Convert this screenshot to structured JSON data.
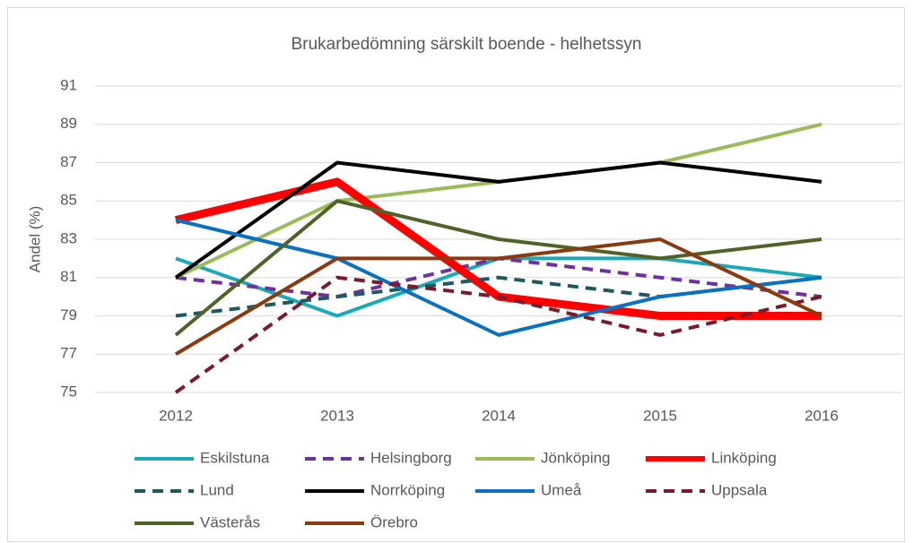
{
  "chart_data": {
    "type": "line",
    "title": "Brukarbedömning särskilt boende - helhetssyn",
    "y_label": "Andel (%)",
    "categories": [
      "2012",
      "2013",
      "2014",
      "2015",
      "2016"
    ],
    "ylim": [
      75,
      91
    ],
    "yticks": [
      75,
      77,
      79,
      81,
      83,
      85,
      87,
      89,
      91
    ],
    "grid": true,
    "legend": "bottom",
    "series": [
      {
        "name": "Eskilstuna",
        "color": "#1aa9b6",
        "dash": false,
        "width": 4,
        "values": [
          82,
          79,
          82,
          82,
          81
        ]
      },
      {
        "name": "Helsingborg",
        "color": "#7030a0",
        "dash": true,
        "width": 4,
        "values": [
          81,
          80,
          82,
          81,
          80
        ]
      },
      {
        "name": "Jönköping",
        "color": "#9bbb59",
        "dash": false,
        "width": 4,
        "values": [
          81,
          85,
          86,
          87,
          89
        ]
      },
      {
        "name": "Linköping",
        "color": "#ff0000",
        "dash": false,
        "width": 9,
        "values": [
          84,
          86,
          80,
          79,
          79
        ]
      },
      {
        "name": "Lund",
        "color": "#1d5a5f",
        "dash": true,
        "width": 4,
        "values": [
          79,
          80,
          81,
          80,
          81
        ]
      },
      {
        "name": "Norrköping",
        "color": "#000000",
        "dash": false,
        "width": 4,
        "values": [
          81,
          87,
          86,
          87,
          86
        ]
      },
      {
        "name": "Umeå",
        "color": "#0a70c0",
        "dash": false,
        "width": 4,
        "values": [
          84,
          82,
          78,
          80,
          81
        ]
      },
      {
        "name": "Uppsala",
        "color": "#7b1a2c",
        "dash": true,
        "width": 4,
        "values": [
          75,
          81,
          80,
          78,
          80
        ]
      },
      {
        "name": "Västerås",
        "color": "#4f6228",
        "dash": false,
        "width": 4,
        "values": [
          78,
          85,
          83,
          82,
          83
        ]
      },
      {
        "name": "Örebro",
        "color": "#8b3a10",
        "dash": false,
        "width": 4,
        "values": [
          77,
          82,
          82,
          83,
          79
        ]
      }
    ]
  }
}
